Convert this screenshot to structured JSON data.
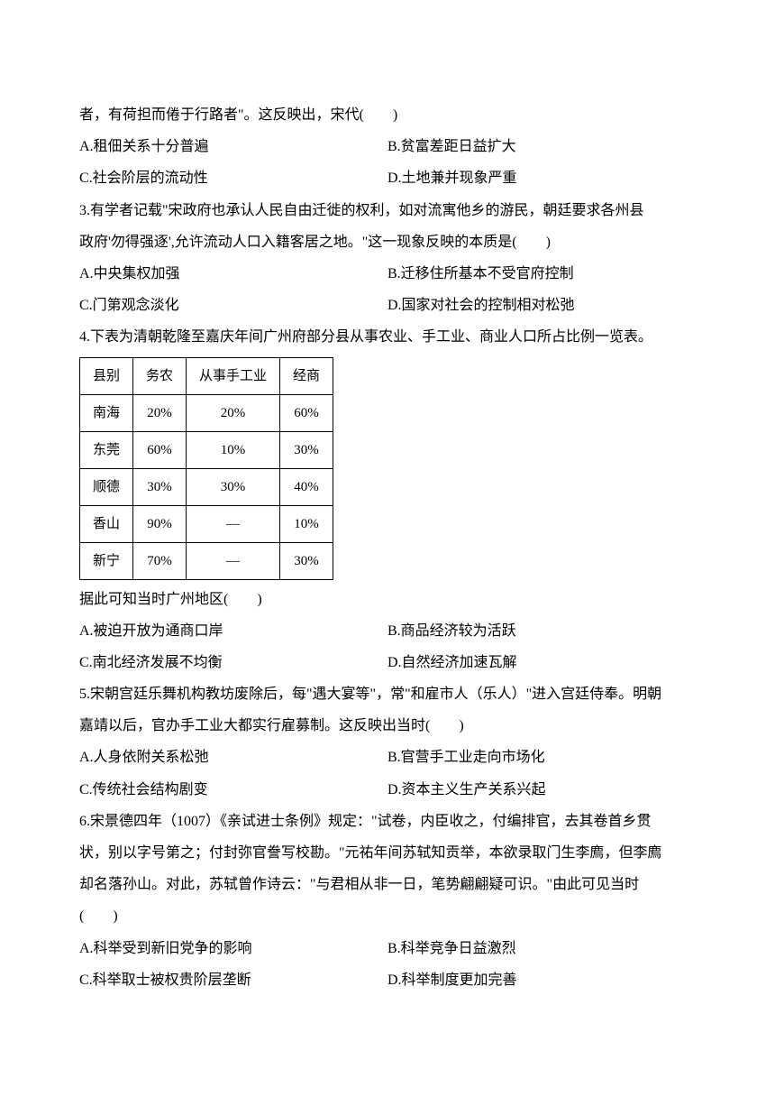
{
  "q2": {
    "tail": "者，有荷担而倦于行路者\"。这反映出，宋代(　　)",
    "optA": "A.租佃关系十分普遍",
    "optB": "B.贫富差距日益扩大",
    "optC": "C.社会阶层的流动性",
    "optD": "D.土地兼并现象严重"
  },
  "q3": {
    "line1": "3.有学者记载\"宋政府也承认人民自由迁徙的权利，如对流寓他乡的游民，朝廷要求各州县",
    "line2": "政府'勿得强逐',允许流动人口入籍客居之地。\"这一现象反映的本质是(　　)",
    "optA": "A.中央集权加强",
    "optB": "B.迁移住所基本不受官府控制",
    "optC": "C.门第观念淡化",
    "optD": "D.国家对社会的控制相对松弛"
  },
  "q4": {
    "intro": "4.下表为清朝乾隆至嘉庆年间广州府部分县从事农业、手工业、商业人口所占比例一览表。",
    "table": {
      "headers": [
        "县别",
        "务农",
        "从事手工业",
        "经商"
      ],
      "rows": [
        [
          "南海",
          "20%",
          "20%",
          "60%"
        ],
        [
          "东莞",
          "60%",
          "10%",
          "30%"
        ],
        [
          "顺德",
          "30%",
          "30%",
          "40%"
        ],
        [
          "香山",
          "90%",
          "—",
          "10%"
        ],
        [
          "新宁",
          "70%",
          "—",
          "30%"
        ]
      ]
    },
    "after": "据此可知当时广州地区(　　)",
    "optA": "A.被迫开放为通商口岸",
    "optB": "B.商品经济较为活跃",
    "optC": "C.南北经济发展不均衡",
    "optD": "D.自然经济加速瓦解"
  },
  "q5": {
    "line1": "5.宋朝宫廷乐舞机构教坊废除后，每\"遇大宴等\"，常\"和雇市人（乐人）\"进入宫廷侍奉。明朝",
    "line2": "嘉靖以后，官办手工业大都实行雇募制。这反映出当时(　　)",
    "optA": "A.人身依附关系松弛",
    "optB": "B.官营手工业走向市场化",
    "optC": "C.传统社会结构剧变",
    "optD": "D.资本主义生产关系兴起"
  },
  "q6": {
    "line1": "6.宋景德四年（1007）《亲试进士条例》规定：\"试卷，内臣收之，付编排官，去其卷首乡贯",
    "line2": "状，别以字号第之；付封弥官誊写校勘。\"元祐年间苏轼知贡举，本欲录取门生李廌，但李廌",
    "line3": "却名落孙山。对此，苏轼曾作诗云：\"与君相从非一日，笔势翩翩疑可识。\"由此可见当时",
    "line4": "(　　)",
    "optA": "A.科举受到新旧党争的影响",
    "optB": "B.科举竞争日益激烈",
    "optC": "C.科举取士被权贵阶层垄断",
    "optD": "D.科举制度更加完善"
  }
}
